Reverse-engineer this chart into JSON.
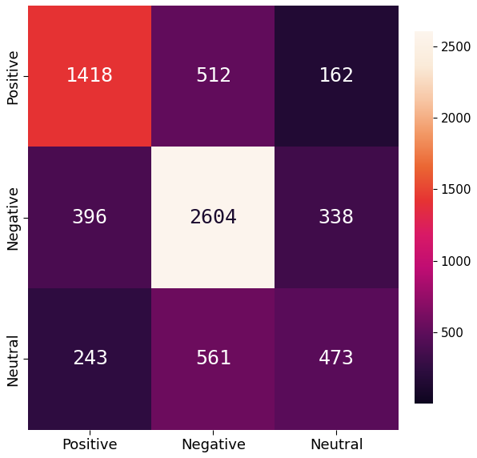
{
  "matrix": [
    [
      1418,
      512,
      162
    ],
    [
      396,
      2604,
      338
    ],
    [
      243,
      561,
      473
    ]
  ],
  "x_labels": [
    "Positive",
    "Negative",
    "Neutral"
  ],
  "y_labels": [
    "Positive",
    "Negative",
    "Neutral"
  ],
  "colormap": "hot",
  "vmin": 0,
  "vmax": 2604,
  "text_color_threshold": 1800,
  "text_color_dark": "#1a0a2e",
  "text_color_light": "white",
  "font_size": 18,
  "cbar_ticks": [
    500,
    1000,
    1500,
    2000,
    2500
  ],
  "background_color": "#0d0011"
}
